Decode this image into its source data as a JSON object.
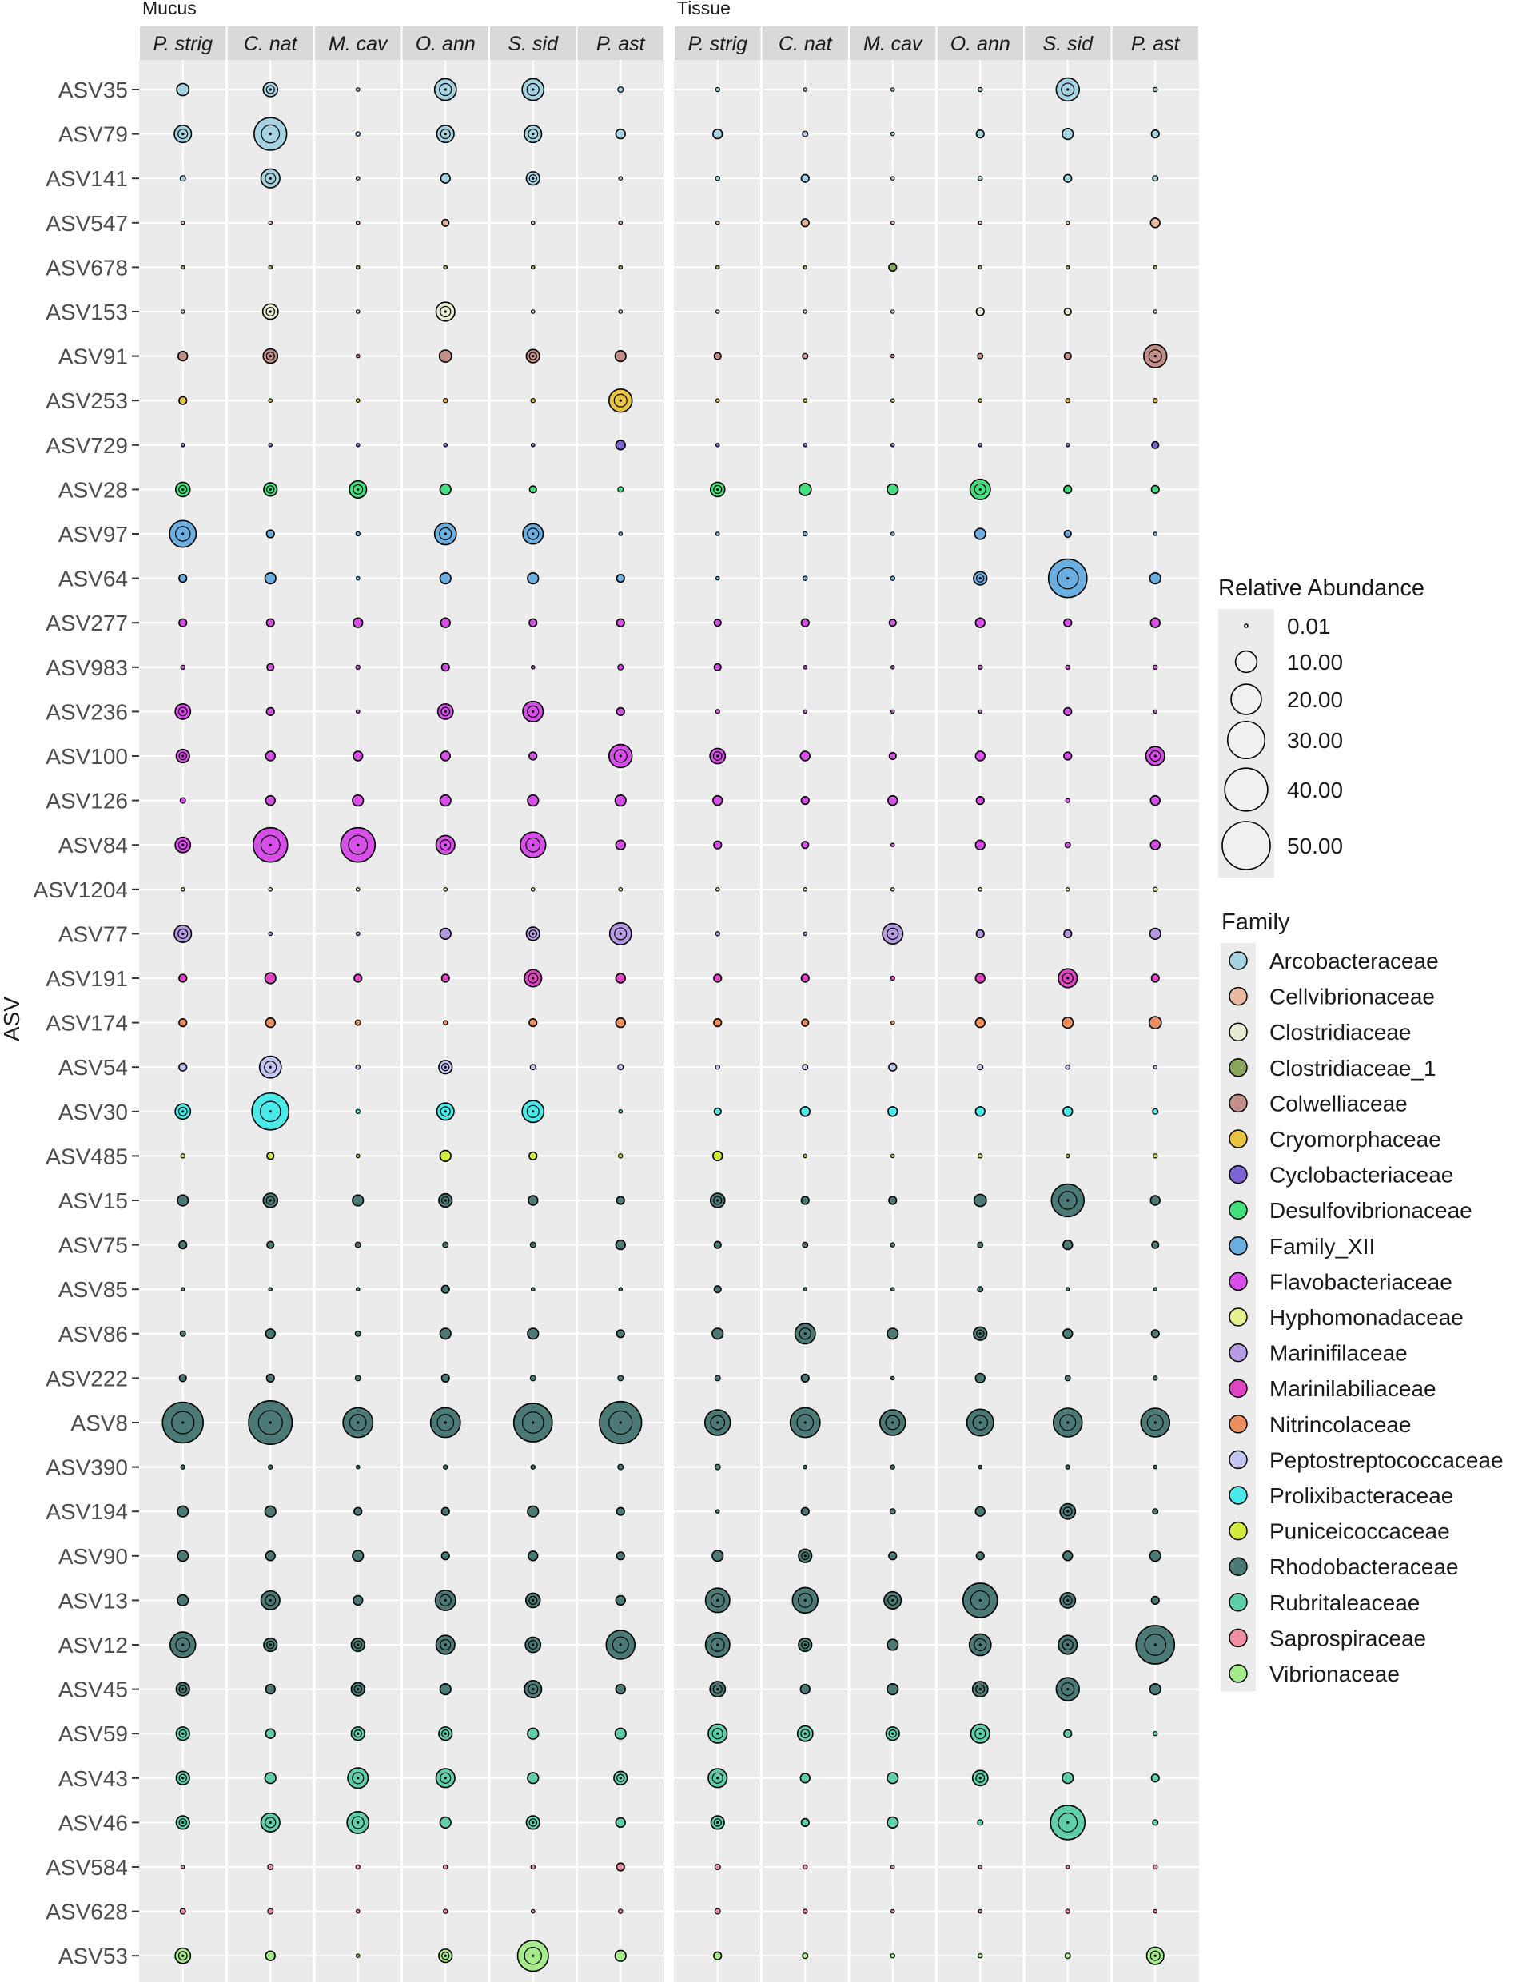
{
  "chart_data": {
    "type": "bubble",
    "ylabel": "ASV",
    "facets": [
      "Mucus",
      "Tissue"
    ],
    "species": [
      "P. strig",
      "C. nat",
      "M. cav",
      "O. ann",
      "S. sid",
      "P. ast"
    ],
    "asvs": [
      "ASV35",
      "ASV79",
      "ASV141",
      "ASV547",
      "ASV678",
      "ASV153",
      "ASV91",
      "ASV253",
      "ASV729",
      "ASV28",
      "ASV97",
      "ASV64",
      "ASV277",
      "ASV983",
      "ASV236",
      "ASV100",
      "ASV126",
      "ASV84",
      "ASV1204",
      "ASV77",
      "ASV191",
      "ASV174",
      "ASV54",
      "ASV30",
      "ASV485",
      "ASV15",
      "ASV75",
      "ASV85",
      "ASV86",
      "ASV222",
      "ASV8",
      "ASV390",
      "ASV194",
      "ASV90",
      "ASV13",
      "ASV12",
      "ASV45",
      "ASV59",
      "ASV43",
      "ASV46",
      "ASV584",
      "ASV628",
      "ASV53"
    ],
    "asv_family": [
      "Arcobacteraceae",
      "Arcobacteraceae",
      "Arcobacteraceae",
      "Cellvibrionaceae",
      "Clostridiaceae_1",
      "Clostridiaceae",
      "Colwelliaceae",
      "Cryomorphaceae",
      "Cyclobacteriaceae",
      "Desulfovibrionaceae",
      "Family_XII",
      "Family_XII",
      "Flavobacteriaceae",
      "Flavobacteriaceae",
      "Flavobacteriaceae",
      "Flavobacteriaceae",
      "Flavobacteriaceae",
      "Flavobacteriaceae",
      "Hyphomonadaceae",
      "Marinifilaceae",
      "Marinilabiliaceae",
      "Nitrincolaceae",
      "Peptostreptococcaceae",
      "Prolixibacteraceae",
      "Puniceicoccaceae",
      "Rhodobacteraceae",
      "Rhodobacteraceae",
      "Rhodobacteraceae",
      "Rhodobacteraceae",
      "Rhodobacteraceae",
      "Rhodobacteraceae",
      "Rhodobacteraceae",
      "Rhodobacteraceae",
      "Rhodobacteraceae",
      "Rhodobacteraceae",
      "Rhodobacteraceae",
      "Rhodobacteraceae",
      "Rubritaleaceae",
      "Rubritaleaceae",
      "Rubritaleaceae",
      "Saprospiraceae",
      "Saprospiraceae",
      "Vibrionaceae"
    ],
    "size_legend": {
      "title": "Relative Abundance",
      "values": [
        0.01,
        10,
        20,
        30,
        40,
        50
      ],
      "labels": [
        "0.01",
        "10.00",
        "20.00",
        "30.00",
        "40.00",
        "50.00"
      ]
    },
    "family_legend": {
      "title": "Family",
      "items": [
        {
          "name": "Arcobacteraceae",
          "color": "#a6d3e2"
        },
        {
          "name": "Cellvibrionaceae",
          "color": "#e9b9a1"
        },
        {
          "name": "Clostridiaceae",
          "color": "#e6ecd2"
        },
        {
          "name": "Clostridiaceae_1",
          "color": "#8aa85c"
        },
        {
          "name": "Colwelliaceae",
          "color": "#c18f87"
        },
        {
          "name": "Cryomorphaceae",
          "color": "#e9c23f"
        },
        {
          "name": "Cyclobacteriaceae",
          "color": "#7d64d2"
        },
        {
          "name": "Desulfovibrionaceae",
          "color": "#45e07e"
        },
        {
          "name": "Family_XII",
          "color": "#6aafe0"
        },
        {
          "name": "Flavobacteriaceae",
          "color": "#d74fe8"
        },
        {
          "name": "Hyphomonadaceae",
          "color": "#e6ef8e"
        },
        {
          "name": "Marinifilaceae",
          "color": "#b69ae2"
        },
        {
          "name": "Marinilabiliaceae",
          "color": "#e045c4"
        },
        {
          "name": "Nitrincolaceae",
          "color": "#ec8f5e"
        },
        {
          "name": "Peptostreptococcaceae",
          "color": "#c4c6f2"
        },
        {
          "name": "Prolixibacteraceae",
          "color": "#4aeaea"
        },
        {
          "name": "Puniceicoccaceae",
          "color": "#d4e83e"
        },
        {
          "name": "Rhodobacteraceae",
          "color": "#4b7a76"
        },
        {
          "name": "Rubritaleaceae",
          "color": "#5ecfaa"
        },
        {
          "name": "Saprospiraceae",
          "color": "#ef8fa3"
        },
        {
          "name": "Vibrionaceae",
          "color": "#a6eb8a"
        }
      ]
    },
    "abundance": {
      "Mucus": [
        [
          2.5,
          3.5,
          0.2,
          8,
          8,
          0.5
        ],
        [
          5,
          18,
          0.3,
          5,
          5,
          1.5
        ],
        [
          0.5,
          6,
          0.1,
          1.5,
          3,
          0.2
        ],
        [
          0.2,
          0.1,
          0.1,
          0.8,
          0.2,
          0.2
        ],
        [
          0.1,
          0.1,
          0.2,
          0.1,
          0.1,
          0.1
        ],
        [
          0.2,
          4,
          0.2,
          6,
          0.2,
          0.2
        ],
        [
          1.5,
          3.5,
          0.1,
          2.5,
          3,
          2
        ],
        [
          1,
          0.2,
          0.2,
          0.3,
          0.3,
          9
        ],
        [
          0.1,
          0.1,
          0.1,
          0.1,
          0.1,
          1.5
        ],
        [
          3.5,
          3,
          5,
          2,
          0.8,
          0.5
        ],
        [
          12,
          1,
          0.3,
          8,
          7,
          0.1
        ],
        [
          1,
          2,
          0.1,
          2,
          2,
          1
        ],
        [
          1,
          1,
          1.5,
          1.5,
          1,
          1
        ],
        [
          0.3,
          0.8,
          0.3,
          1,
          0.2,
          0.5
        ],
        [
          4,
          1,
          0.1,
          4,
          7,
          1
        ],
        [
          3,
          1.5,
          1.5,
          1.5,
          1,
          9
        ],
        [
          0.5,
          1.5,
          2,
          2,
          2,
          2
        ],
        [
          4,
          20,
          20,
          6,
          11,
          1.5
        ],
        [
          0.1,
          0.1,
          0.1,
          0.1,
          0.1,
          0.1
        ],
        [
          5,
          0.1,
          0.1,
          2,
          3,
          8
        ],
        [
          1,
          2,
          1,
          1,
          5,
          1.5
        ],
        [
          1,
          1.5,
          0.5,
          0.3,
          1,
          1.5
        ],
        [
          1,
          8,
          0.3,
          3,
          0.5,
          0.5
        ],
        [
          4,
          23,
          0.3,
          5,
          8,
          0.1
        ],
        [
          0.3,
          0.8,
          0.2,
          2,
          1,
          0.3
        ],
        [
          2,
          3.5,
          2,
          3,
          1.5,
          1
        ],
        [
          1,
          0.8,
          0.5,
          0.5,
          0.5,
          1.5
        ],
        [
          0.1,
          0.1,
          0.1,
          1,
          0.1,
          0.1
        ],
        [
          0.5,
          1.5,
          0.5,
          2,
          2,
          1
        ],
        [
          0.8,
          1,
          0.5,
          1,
          0.5,
          0.5
        ],
        [
          28,
          32,
          15,
          15,
          25,
          30
        ],
        [
          0.3,
          0.3,
          0.2,
          0.3,
          0.3,
          0.5
        ],
        [
          2,
          2,
          1,
          1,
          2,
          1
        ],
        [
          2,
          1.5,
          2,
          1,
          1.5,
          1
        ],
        [
          2,
          6,
          1.5,
          7,
          3.5,
          1.5
        ],
        [
          11,
          3,
          3,
          6,
          4,
          14
        ],
        [
          3,
          1.5,
          3,
          2,
          5,
          1.5
        ],
        [
          3,
          1.5,
          3,
          3,
          2,
          2
        ],
        [
          3,
          2,
          7,
          6,
          2,
          3
        ],
        [
          3,
          6,
          8,
          2,
          3,
          1.5
        ],
        [
          0.2,
          0.5,
          0.3,
          0.3,
          0.3,
          1
        ],
        [
          0.5,
          0.5,
          0.1,
          0.3,
          0.1,
          0.3
        ],
        [
          4,
          1.5,
          0.2,
          3,
          16,
          2
        ]
      ],
      "Tissue": [
        [
          0.3,
          0.1,
          0.1,
          0.3,
          9,
          0.3
        ],
        [
          1.5,
          0.5,
          0.1,
          1,
          2,
          1
        ],
        [
          0.3,
          1,
          0.1,
          0.3,
          1,
          0.5
        ],
        [
          0.1,
          1,
          0.1,
          0.2,
          0.2,
          1.5
        ],
        [
          0.2,
          0.2,
          1,
          0.2,
          0.1,
          0.1
        ],
        [
          0.2,
          0.1,
          0.2,
          1,
          0.8,
          0.1
        ],
        [
          0.8,
          0.5,
          0.2,
          0.5,
          0.8,
          9
        ],
        [
          0.1,
          0.1,
          0.1,
          0.1,
          0.3,
          0.3
        ],
        [
          0.1,
          0.1,
          0.1,
          0.1,
          0.2,
          0.8
        ],
        [
          3.5,
          2.5,
          2,
          7,
          1,
          1
        ],
        [
          0.1,
          0.3,
          0.1,
          2,
          0.8,
          0.2
        ],
        [
          0.1,
          0.3,
          0.3,
          3,
          25,
          2
        ],
        [
          0.8,
          1,
          0.8,
          1.5,
          1,
          1.5
        ],
        [
          0.8,
          0.1,
          0.2,
          0.3,
          0.3,
          0.3
        ],
        [
          0.3,
          0.2,
          0.1,
          0.1,
          1,
          0.2
        ],
        [
          4,
          1.5,
          0.8,
          1.5,
          1,
          6
        ],
        [
          1.5,
          1,
          1.5,
          1,
          0.3,
          1.5
        ],
        [
          1,
          0.8,
          0.1,
          1.5,
          0.5,
          1.5
        ],
        [
          0.1,
          0.1,
          0.1,
          0.1,
          0.1,
          0.3
        ],
        [
          0.3,
          0.1,
          7,
          1,
          1,
          2
        ],
        [
          1,
          1,
          0.3,
          1.5,
          6,
          1
        ],
        [
          1,
          0.8,
          0.2,
          1.5,
          2,
          2.5
        ],
        [
          0.3,
          0.5,
          1,
          0.5,
          0.3,
          0.1
        ],
        [
          0.8,
          1.5,
          1.5,
          1.5,
          1.5,
          0.5
        ],
        [
          1.5,
          0.1,
          0.1,
          0.3,
          0.1,
          0.3
        ],
        [
          3.5,
          1,
          1,
          2.5,
          18,
          1.5
        ],
        [
          0.8,
          0.5,
          0.3,
          0.5,
          1.5,
          0.8
        ],
        [
          0.8,
          0.2,
          0.1,
          0.5,
          0.1,
          0.1
        ],
        [
          2,
          7,
          2,
          3,
          1.5,
          1
        ],
        [
          0.5,
          1,
          0.1,
          1.5,
          0.5,
          0.3
        ],
        [
          11,
          15,
          11,
          12,
          14,
          14
        ],
        [
          0.5,
          0.2,
          0.3,
          0.1,
          0.3,
          0.1
        ],
        [
          0.2,
          1,
          0.5,
          1.5,
          4,
          0.5
        ],
        [
          2,
          3,
          1,
          1,
          1.5,
          2
        ],
        [
          10,
          11,
          5,
          20,
          4,
          1
        ],
        [
          10,
          3,
          2,
          8,
          6,
          25
        ],
        [
          4,
          1.5,
          2,
          4,
          9,
          2
        ],
        [
          6,
          4,
          3,
          6,
          1,
          0.3
        ],
        [
          6,
          1.5,
          2,
          4,
          2,
          1
        ],
        [
          3,
          1,
          2,
          0.5,
          20,
          0.5
        ],
        [
          0.5,
          0.3,
          0.1,
          0.1,
          0.2,
          0.3
        ],
        [
          0.5,
          0.3,
          0.1,
          0.1,
          0.3,
          0.2
        ],
        [
          1,
          0.5,
          0.3,
          0.3,
          0.5,
          5
        ]
      ]
    }
  }
}
